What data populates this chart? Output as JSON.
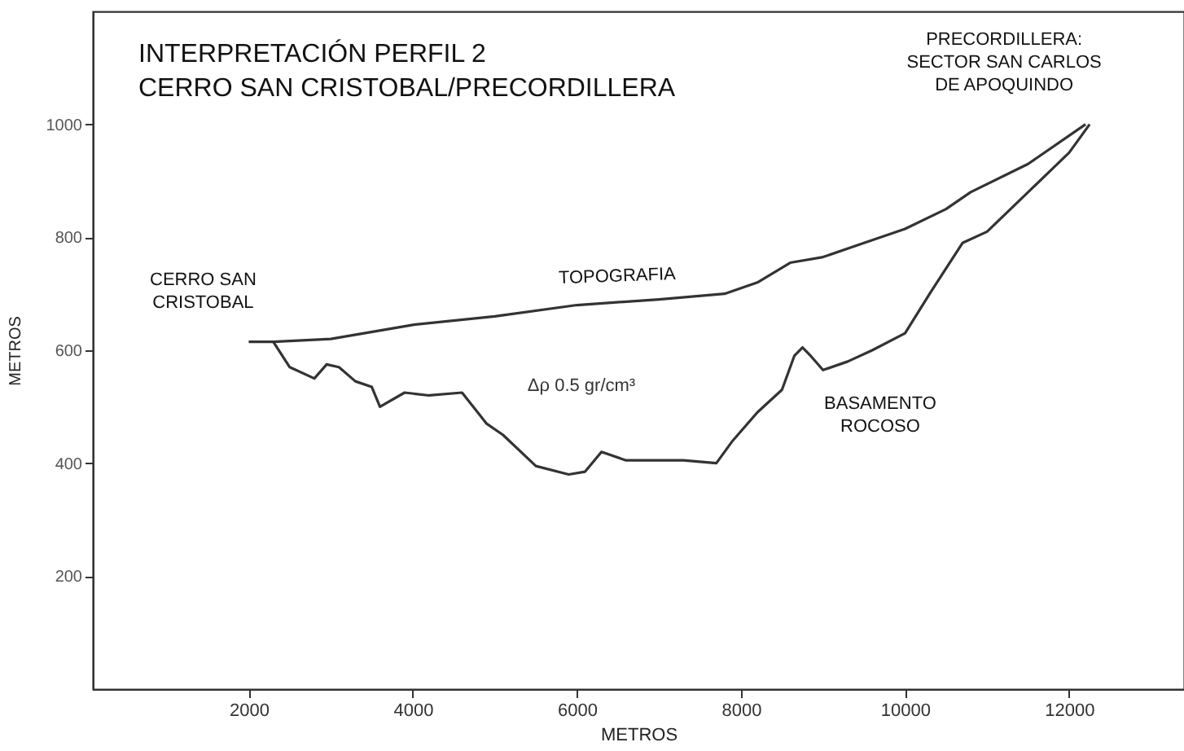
{
  "chart_data": {
    "type": "line",
    "title": "INTERPRETACIÓN PERFIL 2\nCERRO SAN CRISTOBAL/PRECORDILLERA",
    "xlabel": "METROS",
    "ylabel": "METROS",
    "xlim": [
      100,
      13400
    ],
    "ylim": [
      0,
      1200
    ],
    "xticks": [
      2000,
      4000,
      6000,
      8000,
      10000,
      12000
    ],
    "yticks": [
      200,
      400,
      600,
      800,
      1000
    ],
    "grid": false,
    "marker": "none",
    "line_style": "solid",
    "series": [
      {
        "color": "#333333",
        "x": [
          2000,
          2300,
          3000,
          4000,
          5000,
          6000,
          7000,
          7800,
          8200,
          8600,
          9000,
          9500,
          10000,
          10500,
          10800,
          11500,
          12200
        ],
        "values": [
          615,
          615,
          620,
          645,
          660,
          680,
          690,
          700,
          720,
          755,
          765,
          790,
          815,
          850,
          880,
          930,
          1000
        ]
      },
      {
        "color": "#333333",
        "x": [
          2300,
          2500,
          2800,
          2950,
          3100,
          3300,
          3500,
          3600,
          3900,
          4200,
          4600,
          4900,
          5100,
          5500,
          5900,
          6100,
          6300,
          6600,
          7000,
          7300,
          7700,
          7900,
          8200,
          8500,
          8650,
          8750,
          8850,
          9000,
          9300,
          9600,
          10000,
          10300,
          10700,
          11000,
          11500,
          12000,
          12250
        ],
        "values": [
          615,
          570,
          550,
          575,
          570,
          545,
          535,
          500,
          525,
          520,
          525,
          470,
          450,
          395,
          380,
          385,
          420,
          405,
          405,
          405,
          400,
          440,
          490,
          530,
          590,
          605,
          590,
          565,
          580,
          600,
          630,
          700,
          790,
          810,
          880,
          950,
          1000
        ]
      }
    ],
    "annotations": [
      {
        "text": "TOPOGRAFIA",
        "x": 6500,
        "y": 690
      },
      {
        "text": "BASAMENTO\nROCOSO",
        "x": 9300,
        "y": 580
      },
      {
        "text": "CERRO SAN\nCRISTOBAL",
        "x": 2000,
        "y": 615
      },
      {
        "text": "PRECORDILLERA:\nSECTOR SAN CARLOS\nDE APOQUINDO",
        "x": 12200,
        "y": 1000
      },
      "Δρ 0.5 gr/cm³"
    ]
  }
}
